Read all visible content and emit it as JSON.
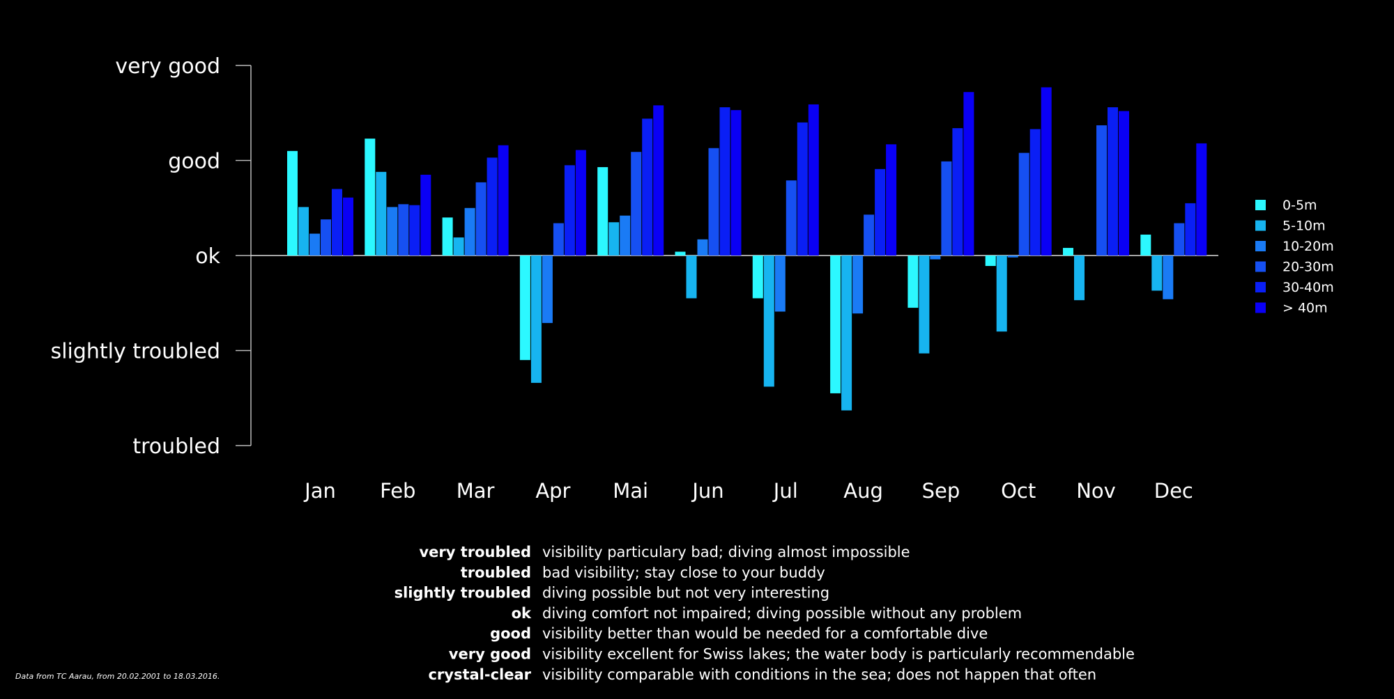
{
  "chart_data": {
    "type": "bar",
    "categories": [
      "Jan",
      "Feb",
      "Mar",
      "Apr",
      "Mai",
      "Jun",
      "Jul",
      "Aug",
      "Sep",
      "Oct",
      "Nov",
      "Dec"
    ],
    "y_tick_labels": [
      "troubled",
      "slightly troubled",
      "ok",
      "good",
      "very good"
    ],
    "y_tick_values": [
      -2,
      -1,
      0,
      1,
      2
    ],
    "ylim": [
      -2,
      2
    ],
    "xlabel": "",
    "ylabel": "",
    "legend_position": "right",
    "series": [
      {
        "name": "0-5m",
        "color": "#2cf8ff",
        "values": [
          1.1,
          1.23,
          0.4,
          -1.1,
          0.93,
          0.04,
          -0.45,
          -1.45,
          -0.55,
          -0.11,
          0.08,
          0.22
        ]
      },
      {
        "name": "5-10m",
        "color": "#17b4f0",
        "values": [
          0.51,
          0.88,
          0.19,
          -1.34,
          0.35,
          -0.45,
          -1.38,
          -1.63,
          -1.03,
          -0.8,
          -0.47,
          -0.37
        ]
      },
      {
        "name": "10-20m",
        "color": "#1a7bf5",
        "values": [
          0.23,
          0.51,
          0.5,
          -0.71,
          0.42,
          0.17,
          -0.59,
          -0.61,
          -0.04,
          -0.02,
          null,
          -0.46
        ]
      },
      {
        "name": "20-30m",
        "color": "#1650f2",
        "values": [
          0.38,
          0.54,
          0.77,
          0.34,
          1.09,
          1.13,
          0.79,
          0.43,
          0.99,
          1.08,
          1.37,
          0.34
        ]
      },
      {
        "name": "30-40m",
        "color": "#0a1ff5",
        "values": [
          0.7,
          0.53,
          1.03,
          0.95,
          1.44,
          1.56,
          1.4,
          0.91,
          1.34,
          1.33,
          1.56,
          0.55
        ]
      },
      {
        "name": "> 40m",
        "color": "#0a00f5",
        "values": [
          0.61,
          0.85,
          1.16,
          1.11,
          1.58,
          1.53,
          1.59,
          1.17,
          1.72,
          1.77,
          1.52,
          1.18
        ]
      }
    ]
  },
  "glossary": [
    {
      "term": "very troubled",
      "desc": "visibility particulary bad; diving almost impossible"
    },
    {
      "term": "troubled",
      "desc": "bad visibility; stay close to your buddy"
    },
    {
      "term": "slightly troubled",
      "desc": "diving possible but not very interesting"
    },
    {
      "term": "ok",
      "desc": "diving comfort not impaired; diving possible without any problem"
    },
    {
      "term": "good",
      "desc": "visibility better than would be needed for a comfortable dive"
    },
    {
      "term": "very good",
      "desc": "visibility excellent for Swiss lakes; the water body is particularly recommendable"
    },
    {
      "term": "crystal-clear",
      "desc": "visibility comparable with conditions in the sea; does not happen that often"
    }
  ],
  "footnote": "Data from TC Aarau, from 20.02.2001 to 18.03.2016."
}
